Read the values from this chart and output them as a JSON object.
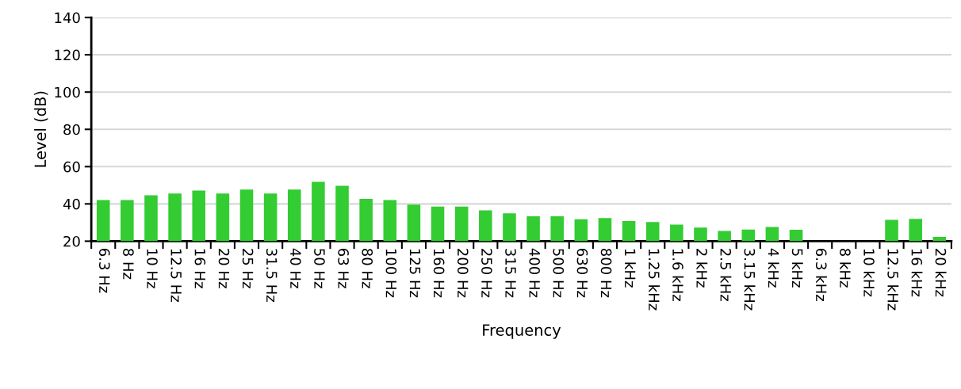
{
  "chart_data": {
    "type": "bar",
    "xlabel": "Frequency",
    "ylabel": "Level (dB)",
    "categories": [
      "6.3 Hz",
      "8 Hz",
      "10 Hz",
      "12.5 Hz",
      "16 Hz",
      "20 Hz",
      "25 Hz",
      "31.5 Hz",
      "40 Hz",
      "50 Hz",
      "63 Hz",
      "80 Hz",
      "100 Hz",
      "125 Hz",
      "160 Hz",
      "200 Hz",
      "250 Hz",
      "315 Hz",
      "400 Hz",
      "500 Hz",
      "630 Hz",
      "800 Hz",
      "1 kHz",
      "1.25 kHz",
      "1.6 kHz",
      "2 kHz",
      "2.5 kHz",
      "3.15 kHz",
      "4 kHz",
      "5 kHz",
      "6.3 kHz",
      "8 kHz",
      "10 kHz",
      "12.5 kHz",
      "16 kHz",
      "20 kHz"
    ],
    "values": [
      42.1,
      42.1,
      44.6,
      45.6,
      47.2,
      45.6,
      47.7,
      45.6,
      47.7,
      51.8,
      49.7,
      42.7,
      42.1,
      39.6,
      38.6,
      38.6,
      36.5,
      34.9,
      33.4,
      33.4,
      31.8,
      32.4,
      30.8,
      30.3,
      28.9,
      27.3,
      25.5,
      26.2,
      27.6,
      26.1,
      null,
      null,
      null,
      31.4,
      32.0,
      22.3
    ],
    "color": "#33cc33",
    "ylim": [
      20,
      140
    ],
    "yticks": [
      20,
      40,
      60,
      80,
      100,
      120,
      140
    ],
    "grid": "y",
    "legend": false
  }
}
